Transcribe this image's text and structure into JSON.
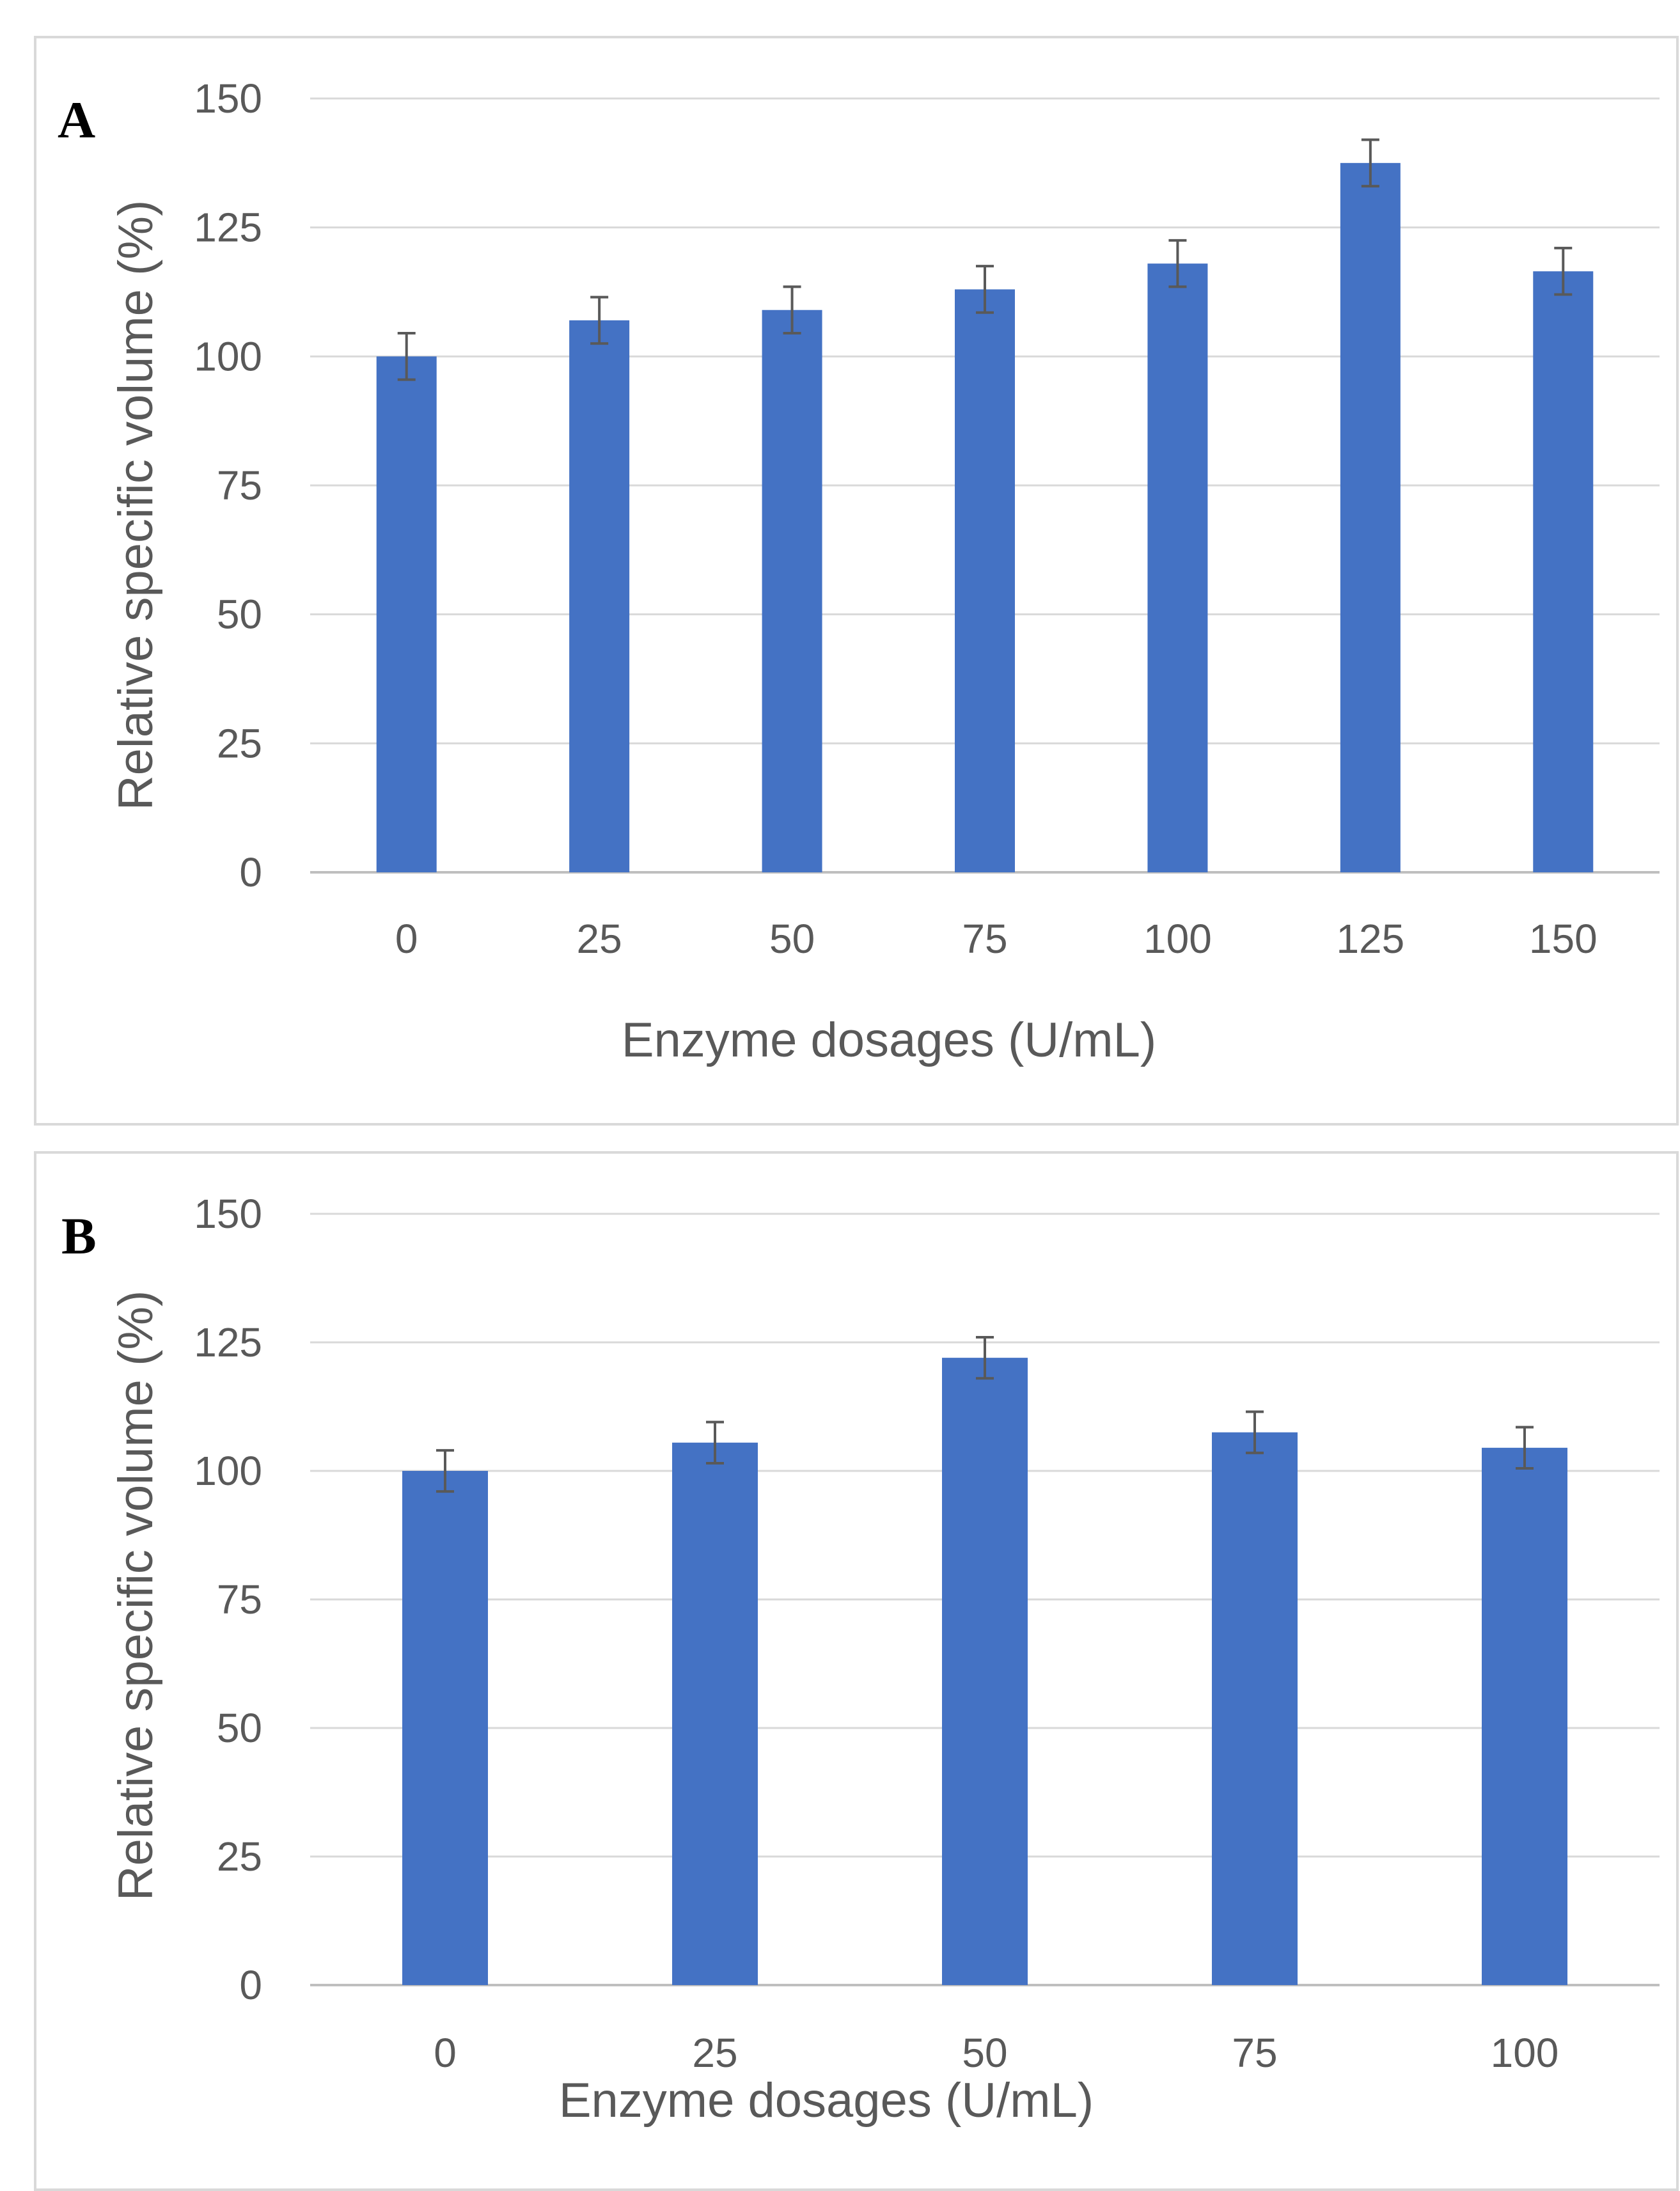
{
  "chart_data": [
    {
      "type": "bar",
      "panel_label": "A",
      "title": "",
      "xlabel": "Enzyme dosages (U/mL)",
      "ylabel": "Relative specific volume (%)",
      "categories": [
        "0",
        "25",
        "50",
        "75",
        "100",
        "125",
        "150"
      ],
      "values": [
        100,
        107,
        109,
        113,
        118,
        137.5,
        116.5
      ],
      "errors": [
        4.5,
        4.5,
        4.5,
        4.5,
        4.5,
        4.5,
        4.5
      ],
      "ylim": [
        0,
        150
      ],
      "yticks": [
        0,
        25,
        50,
        75,
        100,
        125,
        150
      ],
      "grid": true,
      "legend": "none",
      "color": "#4472C4"
    },
    {
      "type": "bar",
      "panel_label": "B",
      "title": "",
      "xlabel": "Enzyme dosages (U/mL)",
      "ylabel": "Relative specific volume (%)",
      "categories": [
        "0",
        "25",
        "50",
        "75",
        "100"
      ],
      "values": [
        100,
        105.5,
        122,
        107.5,
        104.5
      ],
      "errors": [
        4,
        4,
        4,
        4,
        4
      ],
      "ylim": [
        0,
        150
      ],
      "yticks": [
        0,
        25,
        50,
        75,
        100,
        125,
        150
      ],
      "grid": true,
      "legend": "none",
      "color": "#4472C4"
    }
  ]
}
